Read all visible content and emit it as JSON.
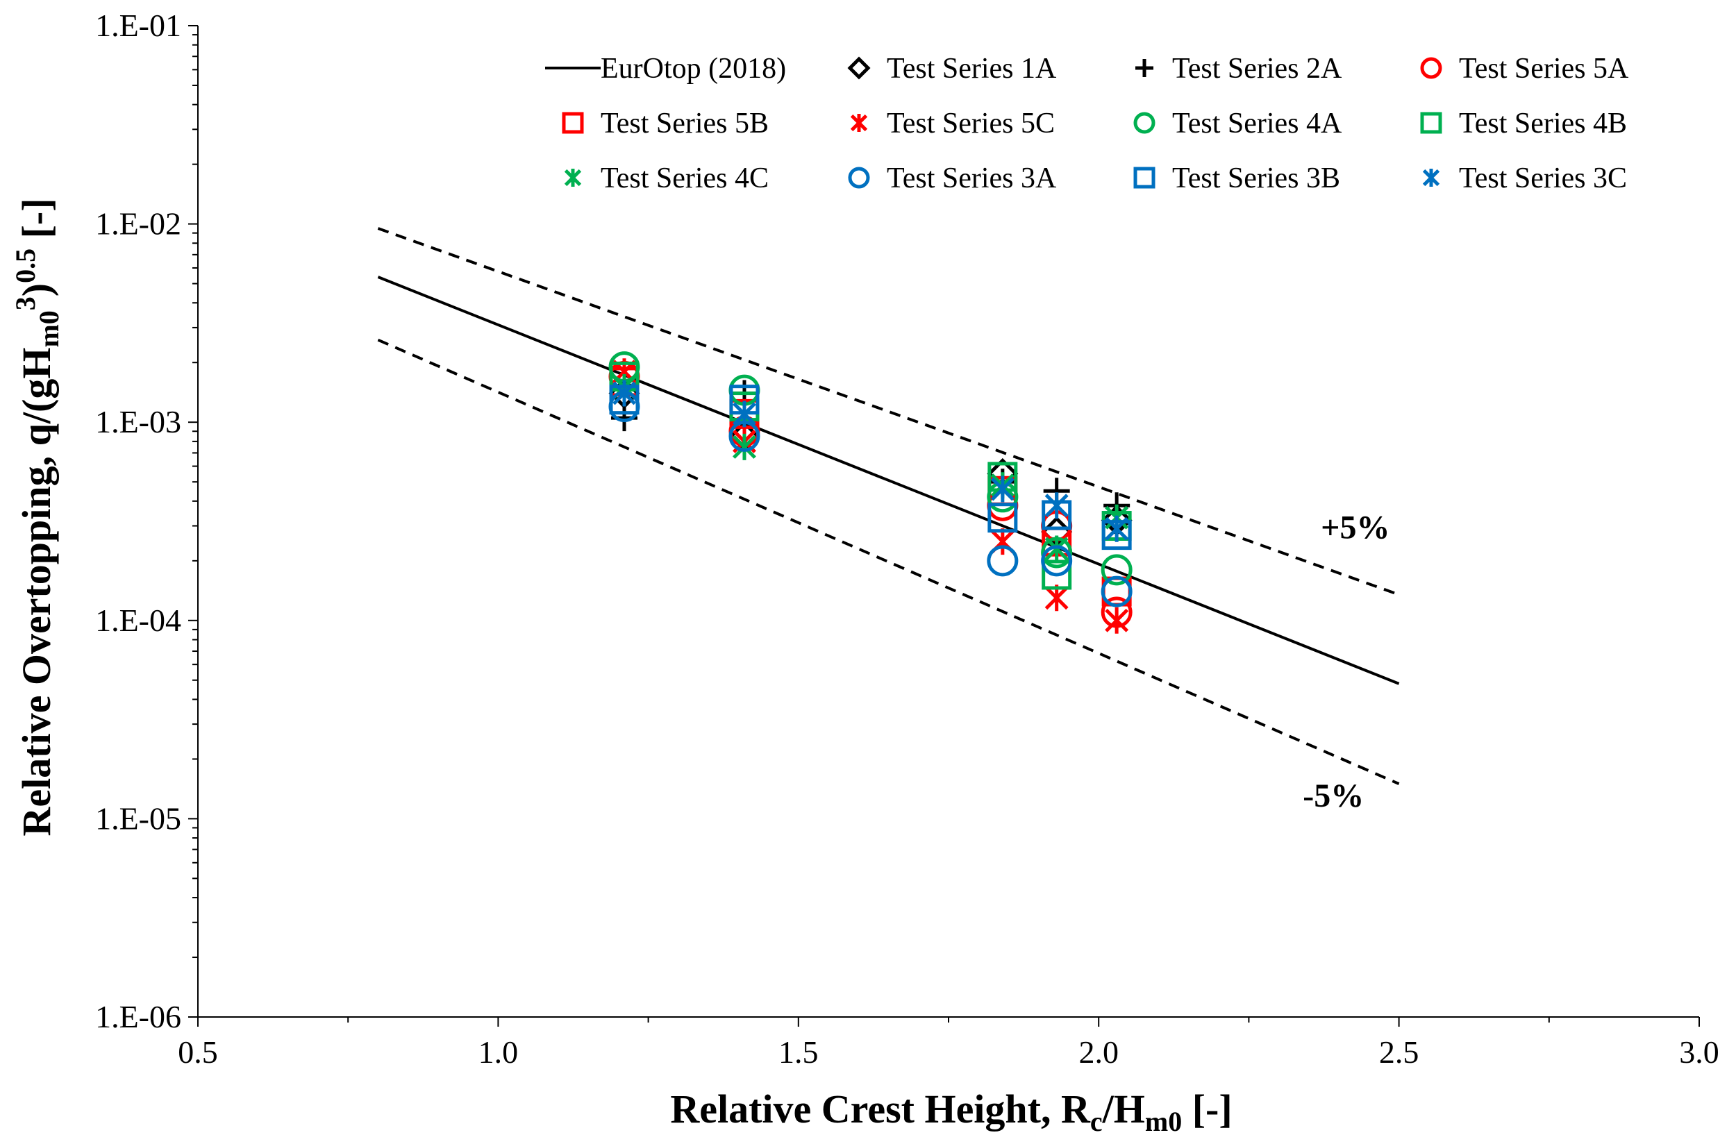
{
  "chart_data": {
    "type": "scatter",
    "title": "",
    "xlabel_main": "Relative Crest Height, R",
    "xlabel_sub1": "c",
    "xlabel_mid": "/H",
    "xlabel_sub2": "m0",
    "xlabel_end": "  [-]",
    "ylabel_main": "Relative Overtopping, q/(gH",
    "ylabel_sub": "m0",
    "ylabel_sup1": "3",
    "ylabel_mid": ")",
    "ylabel_sup2": "0.5",
    "ylabel_end": " [-]",
    "xlim": [
      0.5,
      3.0
    ],
    "ylim": [
      1e-06,
      0.1
    ],
    "yscale": "log",
    "x_ticks": [
      0.5,
      1.0,
      1.5,
      2.0,
      2.5,
      3.0
    ],
    "x_tick_labels": [
      "0.5",
      "1.0",
      "1.5",
      "2.0",
      "2.5",
      "3.0"
    ],
    "y_ticks": [
      1e-06,
      1e-05,
      0.0001,
      0.001,
      0.01,
      0.1
    ],
    "y_tick_labels": [
      "1.E-06",
      "1.E-05",
      "1.E-04",
      "1.E-03",
      "1.E-02",
      "1.E-01"
    ],
    "legend_position": "top-right",
    "lines": [
      {
        "name": "EurOtop (2018)",
        "style": "solid",
        "x": [
          0.8,
          2.5
        ],
        "y": [
          0.0054,
          4.8e-05
        ]
      },
      {
        "name": "+5%",
        "style": "dashed",
        "x": [
          0.8,
          2.5
        ],
        "y": [
          0.0095,
          0.000135
        ]
      },
      {
        "name": "-5%",
        "style": "dashed",
        "x": [
          0.8,
          2.5
        ],
        "y": [
          0.0026,
          1.5e-05
        ]
      }
    ],
    "annotations": [
      {
        "text": "+5%",
        "x": 2.37,
        "y": 0.00026
      },
      {
        "text": "-5%",
        "x": 2.34,
        "y": 1.15e-05
      }
    ],
    "series": [
      {
        "name": "Test Series 1A",
        "marker": "diamond",
        "color": "#000000",
        "x": [
          1.21,
          1.41,
          1.84,
          1.93,
          2.03
        ],
        "y": [
          0.0014,
          0.00085,
          0.00055,
          0.00028,
          0.00032
        ]
      },
      {
        "name": "Test Series 2A",
        "marker": "plus",
        "color": "#000000",
        "x": [
          1.21,
          1.41,
          1.84,
          1.93,
          2.03
        ],
        "y": [
          0.00105,
          0.0014,
          0.0005,
          0.00045,
          0.00038
        ]
      },
      {
        "name": "Test Series 5A",
        "marker": "circle",
        "color": "#ff0000",
        "x": [
          1.21,
          1.41,
          1.84,
          1.93,
          2.03
        ],
        "y": [
          0.0017,
          0.0009,
          0.00038,
          0.0003,
          0.00011
        ]
      },
      {
        "name": "Test Series 5B",
        "marker": "square",
        "color": "#ff0000",
        "x": [
          1.21,
          1.41,
          1.84,
          1.93,
          2.03
        ],
        "y": [
          0.0016,
          0.0011,
          0.00045,
          0.00025,
          0.00014
        ]
      },
      {
        "name": "Test Series 5C",
        "marker": "asterisk",
        "color": "#ff0000",
        "x": [
          1.21,
          1.41,
          1.84,
          1.93,
          2.03
        ],
        "y": [
          0.0018,
          0.0008,
          0.00025,
          0.00013,
          0.0001
        ]
      },
      {
        "name": "Test Series 4A",
        "marker": "circle",
        "color": "#00b050",
        "x": [
          1.21,
          1.41,
          1.84,
          1.93,
          2.03
        ],
        "y": [
          0.0019,
          0.00145,
          0.00042,
          0.00022,
          0.00018
        ]
      },
      {
        "name": "Test Series 4B",
        "marker": "square",
        "color": "#00b050",
        "x": [
          1.21,
          1.41,
          1.84,
          1.93,
          2.03
        ],
        "y": [
          0.0017,
          0.0012,
          0.00053,
          0.00017,
          0.0003
        ]
      },
      {
        "name": "Test Series 4C",
        "marker": "asterisk",
        "color": "#00b050",
        "x": [
          1.21,
          1.41,
          1.84,
          1.93,
          2.03
        ],
        "y": [
          0.0015,
          0.00075,
          0.00048,
          0.00023,
          0.00033
        ]
      },
      {
        "name": "Test Series 3A",
        "marker": "circle",
        "color": "#0070c0",
        "x": [
          1.21,
          1.41,
          1.84,
          1.93,
          2.03
        ],
        "y": [
          0.0012,
          0.00085,
          0.0002,
          0.0002,
          0.00014
        ]
      },
      {
        "name": "Test Series 3B",
        "marker": "square",
        "color": "#0070c0",
        "x": [
          1.21,
          1.41,
          1.84,
          1.93,
          2.03
        ],
        "y": [
          0.0013,
          0.0013,
          0.00033,
          0.00034,
          0.00027
        ]
      },
      {
        "name": "Test Series 3C",
        "marker": "asterisk",
        "color": "#0070c0",
        "x": [
          1.21,
          1.41,
          1.84,
          1.93,
          2.03
        ],
        "y": [
          0.0014,
          0.0011,
          0.00046,
          0.00038,
          0.00029
        ]
      }
    ],
    "legend": [
      {
        "name": "EurOtop (2018)",
        "marker": "line",
        "color": "#000000"
      },
      {
        "name": "Test Series 1A",
        "marker": "diamond",
        "color": "#000000"
      },
      {
        "name": "Test Series 2A",
        "marker": "plus",
        "color": "#000000"
      },
      {
        "name": "Test Series 5A",
        "marker": "circle",
        "color": "#ff0000"
      },
      {
        "name": "Test Series 5B",
        "marker": "square",
        "color": "#ff0000"
      },
      {
        "name": "Test Series 5C",
        "marker": "asterisk",
        "color": "#ff0000"
      },
      {
        "name": "Test Series 4A",
        "marker": "circle",
        "color": "#00b050"
      },
      {
        "name": "Test Series 4B",
        "marker": "square",
        "color": "#00b050"
      },
      {
        "name": "Test Series 4C",
        "marker": "asterisk",
        "color": "#00b050"
      },
      {
        "name": "Test Series 3A",
        "marker": "circle",
        "color": "#0070c0"
      },
      {
        "name": "Test Series 3B",
        "marker": "square",
        "color": "#0070c0"
      },
      {
        "name": "Test Series 3C",
        "marker": "asterisk",
        "color": "#0070c0"
      }
    ]
  }
}
